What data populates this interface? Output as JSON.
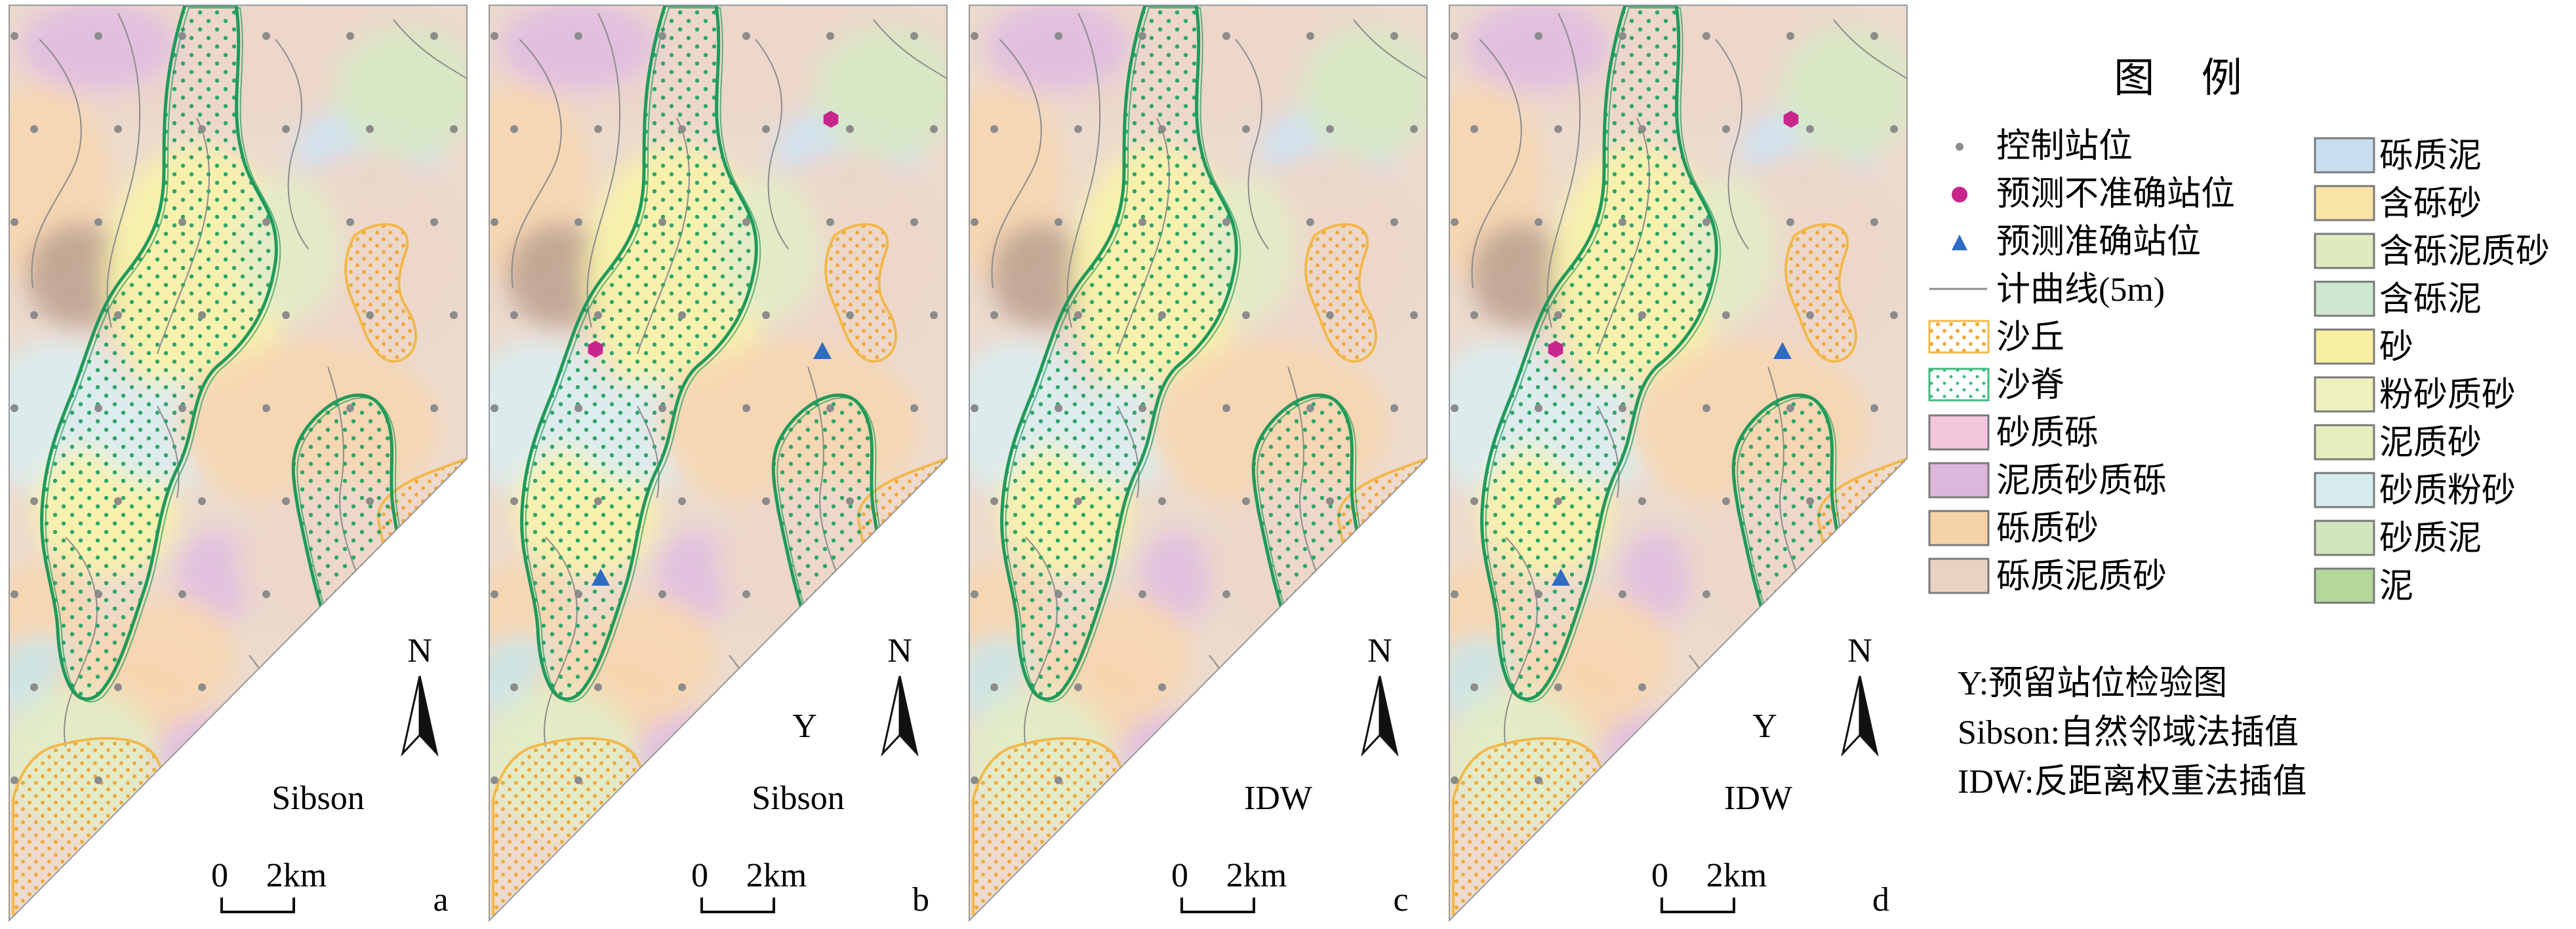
{
  "panels": [
    {
      "id": "a",
      "letter": "a",
      "method": "Sibson",
      "check": "",
      "show_markers": false
    },
    {
      "id": "b",
      "letter": "b",
      "method": "Sibson",
      "check": "Y",
      "show_markers": true
    },
    {
      "id": "c",
      "letter": "c",
      "method": "IDW",
      "check": "",
      "show_markers": false
    },
    {
      "id": "d",
      "letter": "d",
      "method": "IDW",
      "check": "Y",
      "show_markers": true
    }
  ],
  "scale_bar": {
    "zero": "0",
    "length": "2km"
  },
  "north_label": "N",
  "legend": {
    "title": "图 例",
    "symbols": [
      {
        "key": "control-station",
        "label": "控制站位",
        "kind": "dot",
        "color": "#8c8c8c"
      },
      {
        "key": "inaccurate-station",
        "label": "预测不准确站位",
        "kind": "hexagon",
        "color": "#c8268c"
      },
      {
        "key": "accurate-station",
        "label": "预测准确站位",
        "kind": "triangle",
        "color": "#2e6cc4"
      },
      {
        "key": "contour",
        "label": "计曲线(5m)",
        "kind": "line",
        "color": "#8c8c8c"
      },
      {
        "key": "dune",
        "label": "沙丘",
        "kind": "dune",
        "color": "#f2b84a"
      },
      {
        "key": "ridge",
        "label": "沙脊",
        "kind": "ridge",
        "color": "#41b97f"
      }
    ],
    "sediments_left": [
      {
        "label": "砂质砾",
        "color": "#f4c6dc"
      },
      {
        "label": "泥质砂质砾",
        "color": "#ddb6dc"
      },
      {
        "label": "砾质砂",
        "color": "#f6d2a8"
      },
      {
        "label": "砾质泥质砂",
        "color": "#ead2c3"
      }
    ],
    "sediments_right": [
      {
        "label": "砾质泥",
        "color": "#c6def0"
      },
      {
        "label": "含砾砂",
        "color": "#fae3a6"
      },
      {
        "label": "含砾泥质砂",
        "color": "#dfeac0"
      },
      {
        "label": "含砾泥",
        "color": "#cfe6cf"
      },
      {
        "label": "砂",
        "color": "#f7f0a0"
      },
      {
        "label": "粉砂质砂",
        "color": "#eff1bd"
      },
      {
        "label": "泥质砂",
        "color": "#e6eebe"
      },
      {
        "label": "砂质粉砂",
        "color": "#d7eaec"
      },
      {
        "label": "砂质泥",
        "color": "#d2e6be"
      },
      {
        "label": "泥",
        "color": "#b3d89a"
      }
    ]
  },
  "notes": [
    "Y:预留站位检验图",
    "Sibson:自然邻域法插值",
    "IDW:反距离权重法插值"
  ]
}
